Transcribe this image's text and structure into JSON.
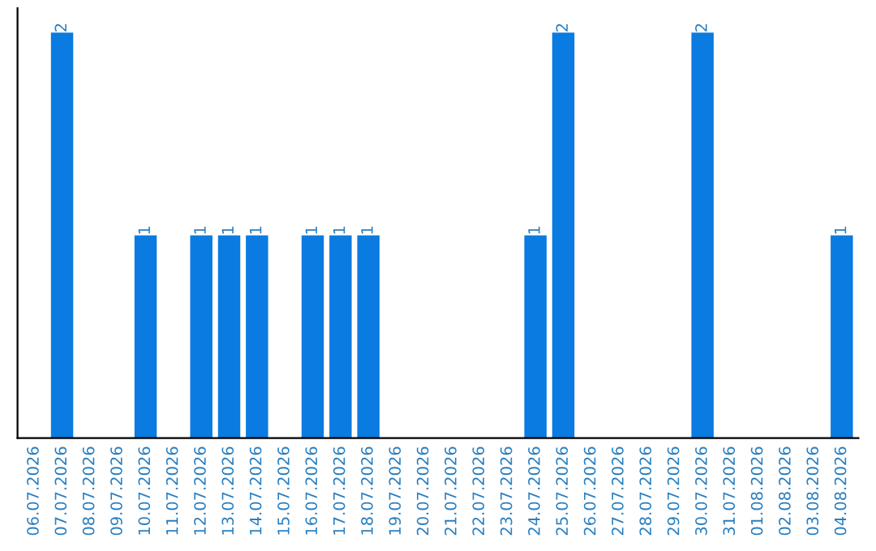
{
  "chart_data": {
    "type": "bar",
    "categories": [
      "06.07.2026",
      "07.07.2026",
      "08.07.2026",
      "09.07.2026",
      "10.07.2026",
      "11.07.2026",
      "12.07.2026",
      "13.07.2026",
      "14.07.2026",
      "15.07.2026",
      "16.07.2026",
      "17.07.2026",
      "18.07.2026",
      "19.07.2026",
      "20.07.2026",
      "21.07.2026",
      "22.07.2026",
      "23.07.2026",
      "24.07.2026",
      "25.07.2026",
      "26.07.2026",
      "27.07.2026",
      "28.07.2026",
      "29.07.2026",
      "30.07.2026",
      "31.07.2026",
      "01.08.2026",
      "02.08.2026",
      "03.08.2026",
      "04.08.2026"
    ],
    "values": [
      0,
      2,
      0,
      0,
      1,
      0,
      1,
      1,
      1,
      0,
      1,
      1,
      1,
      0,
      0,
      0,
      0,
      0,
      1,
      2,
      0,
      0,
      0,
      0,
      2,
      0,
      0,
      0,
      0,
      1
    ],
    "value_labels": [
      null,
      "2",
      null,
      null,
      "1",
      null,
      "1",
      "1",
      "1",
      null,
      "1",
      "1",
      "1",
      null,
      null,
      null,
      null,
      null,
      "1",
      "2",
      null,
      null,
      null,
      null,
      "2",
      null,
      null,
      null,
      null,
      "1"
    ],
    "color": "#0a7be0",
    "tick_labels": "x",
    "grid": false,
    "legend": false
  }
}
